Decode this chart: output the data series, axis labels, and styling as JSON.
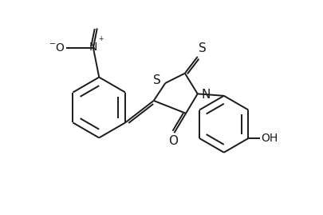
{
  "bg_color": "#ffffff",
  "line_color": "#1a1a1a",
  "line_width": 1.4,
  "font_size": 10,
  "doff": 0.012,
  "xlim": [
    -0.05,
    1.08
  ],
  "ylim": [
    -0.05,
    1.05
  ],
  "figsize": [
    4.05,
    2.69
  ],
  "dpi": 100
}
